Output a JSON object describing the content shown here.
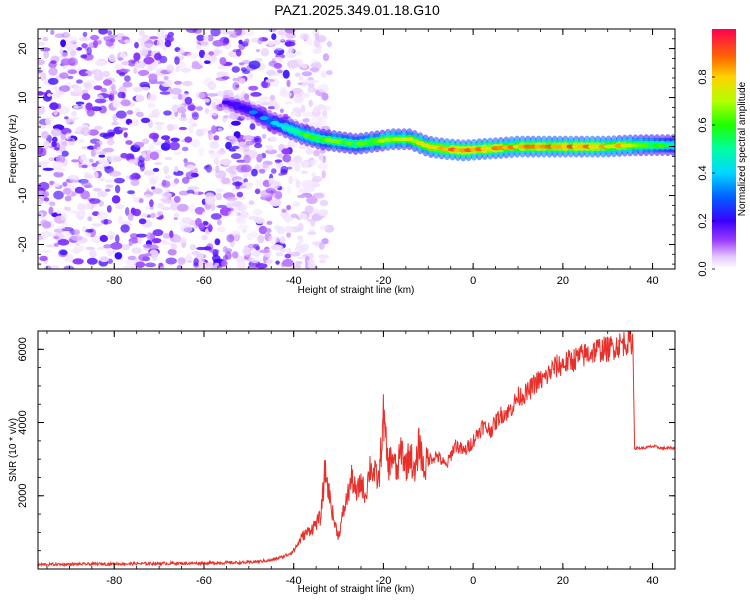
{
  "figure": {
    "title": "PAZ1.2025.349.01.18.G10"
  },
  "chart_data": [
    {
      "type": "heatmap",
      "name": "spectrogram",
      "title": "PAZ1.2025.349.01.18.G10",
      "xlabel": "Height of straight line (km)",
      "ylabel": "Frequency (Hz)",
      "xlim": [
        -97,
        45
      ],
      "ylim": [
        -25,
        24
      ],
      "xticks": [
        -80,
        -60,
        -40,
        -20,
        0,
        20,
        40
      ],
      "yticks": [
        -20,
        -10,
        0,
        10,
        20
      ],
      "colorbar": {
        "label": "Normalized spectral amplitude",
        "range": [
          0.0,
          1.0
        ],
        "ticks": [
          0.0,
          0.2,
          0.4,
          0.6,
          0.8
        ]
      },
      "ridge": {
        "x": [
          -55,
          -50,
          -46,
          -42,
          -38,
          -34,
          -30,
          -26,
          -22,
          -18,
          -14,
          -10,
          -6,
          -2,
          2,
          6,
          10,
          14,
          18,
          22,
          26,
          30,
          34,
          38,
          42,
          45
        ],
        "freq": [
          9,
          7.5,
          5.5,
          4,
          2.5,
          1.5,
          1,
          0.5,
          1,
          1.5,
          1.5,
          0,
          -0.5,
          -0.8,
          -0.5,
          -0.3,
          0,
          0,
          0,
          0,
          0,
          0,
          0.2,
          0.3,
          0.3,
          0.3
        ],
        "amplitude": [
          0.2,
          0.25,
          0.3,
          0.45,
          0.55,
          0.6,
          0.6,
          0.6,
          0.65,
          0.7,
          0.7,
          0.75,
          0.85,
          0.9,
          0.85,
          0.8,
          0.8,
          0.85,
          0.85,
          0.85,
          0.85,
          0.8,
          0.75,
          0.65,
          0.55,
          0.5
        ]
      },
      "noise_region_x": [
        -97,
        -40
      ],
      "noise_amplitude_range": [
        0.0,
        0.2
      ]
    },
    {
      "type": "line",
      "name": "snr",
      "title": "",
      "xlabel": "Height of straight line (km)",
      "ylabel": "SNR (10 * v/v)",
      "xlim": [
        -97,
        45
      ],
      "ylim": [
        0,
        6500
      ],
      "xticks": [
        -80,
        -60,
        -40,
        -20,
        0,
        20,
        40
      ],
      "yticks": [
        2000,
        4000,
        6000
      ],
      "series": [
        {
          "name": "SNR",
          "color": "#e8302b",
          "x": [
            -97,
            -90,
            -80,
            -70,
            -60,
            -50,
            -45,
            -42,
            -40,
            -38,
            -36,
            -34,
            -33,
            -32,
            -31,
            -30,
            -29,
            -28,
            -27,
            -26,
            -25,
            -24,
            -23,
            -22,
            -21,
            -20,
            -19,
            -18,
            -17,
            -16,
            -15,
            -14,
            -13,
            -12,
            -11,
            -10,
            -8,
            -6,
            -4,
            -2,
            0,
            2,
            4,
            6,
            8,
            10,
            12,
            14,
            16,
            18,
            20,
            22,
            24,
            26,
            28,
            30,
            32,
            34,
            35,
            35.6,
            36,
            38,
            40,
            42,
            45
          ],
          "y": [
            120,
            130,
            140,
            150,
            160,
            180,
            240,
            350,
            500,
            900,
            1100,
            1400,
            2700,
            2000,
            1300,
            900,
            1500,
            2000,
            2500,
            2000,
            2400,
            2000,
            2800,
            2600,
            2400,
            4200,
            2800,
            3100,
            2600,
            3300,
            2800,
            3200,
            2500,
            3500,
            2700,
            3000,
            3100,
            2800,
            3400,
            3200,
            3500,
            3900,
            3800,
            4200,
            4300,
            4700,
            4800,
            5100,
            5200,
            5500,
            5600,
            5700,
            5800,
            5900,
            6000,
            6000,
            6100,
            6200,
            6200,
            6250,
            3300,
            3300,
            3350,
            3300,
            3300
          ]
        }
      ]
    }
  ]
}
